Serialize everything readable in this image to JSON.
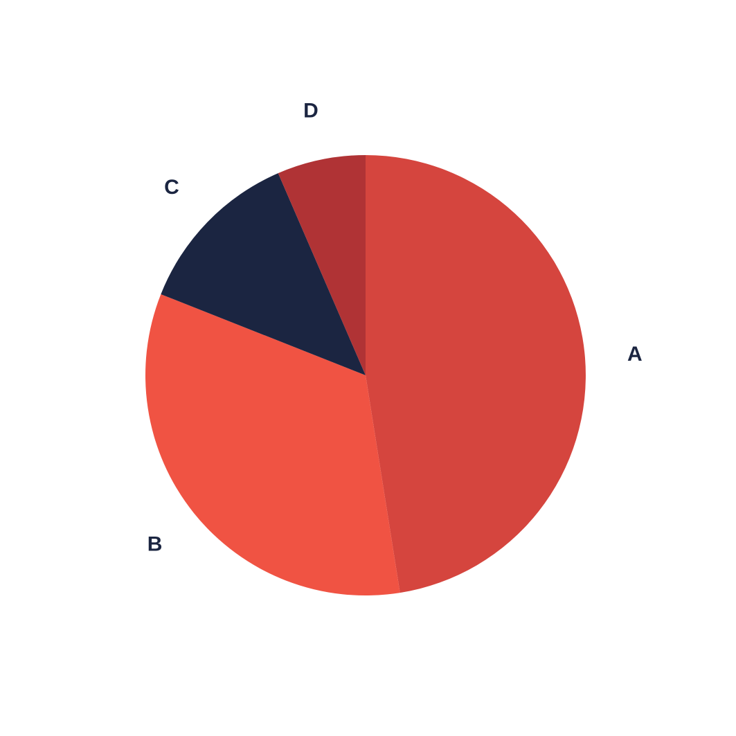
{
  "chart_data": {
    "type": "pie",
    "title": "",
    "start": "top",
    "direction": "clockwise",
    "slices": [
      {
        "label": "A",
        "value": 47.5,
        "color": "#d5453e"
      },
      {
        "label": "B",
        "value": 33.5,
        "color": "#f05343"
      },
      {
        "label": "C",
        "value": 12.5,
        "color": "#1b2541"
      },
      {
        "label": "D",
        "value": 6.5,
        "color": "#b03335"
      }
    ]
  }
}
